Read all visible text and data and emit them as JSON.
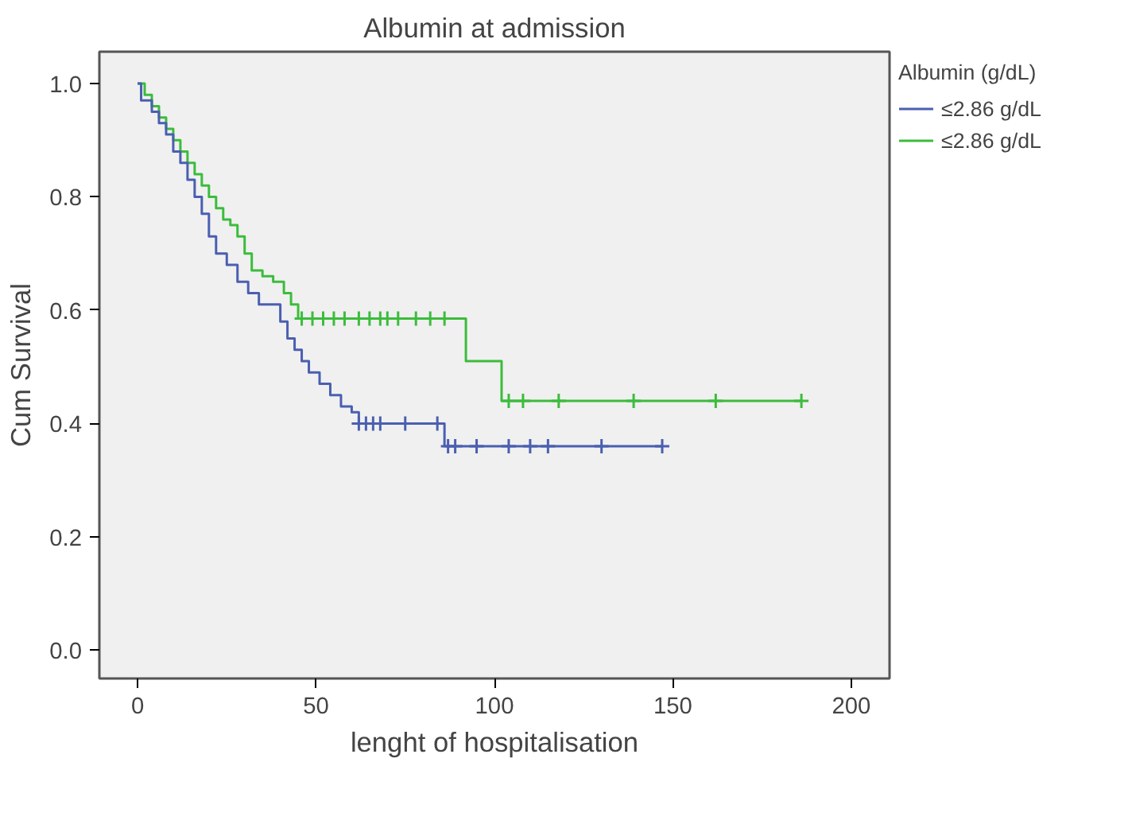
{
  "chart_data": {
    "type": "step",
    "title": "Albumin at admission",
    "xlabel": "lenght of hospitalisation",
    "ylabel": "Cum Survival",
    "legend_title": "Albumin (g/dL)",
    "legend": "top right",
    "grid": false,
    "marker": "none",
    "xlim": [
      -10.7,
      210.7
    ],
    "ylim": [
      -0.05,
      1.056
    ],
    "xticks": [
      0,
      50,
      100,
      150,
      200
    ],
    "yticks": [
      {
        "value": 0,
        "label": "0.0"
      },
      {
        "value": 0.2,
        "label": "0.2"
      },
      {
        "value": 0.4,
        "label": "0.4"
      },
      {
        "value": 0.6,
        "label": "0.6"
      },
      {
        "value": 0.8,
        "label": "0.8"
      },
      {
        "value": 1,
        "label": "1.0"
      }
    ],
    "series": [
      {
        "name": "≤2.86 g/dL",
        "color": "#4a5fb0",
        "x": [
          0,
          1,
          4,
          6,
          8,
          10,
          12,
          14,
          16,
          18,
          20,
          22,
          25,
          28,
          31,
          34,
          37,
          40,
          42,
          44,
          46,
          48,
          51,
          54,
          57,
          60,
          62,
          86,
          147
        ],
        "values": [
          1.0,
          0.97,
          0.95,
          0.93,
          0.91,
          0.88,
          0.86,
          0.83,
          0.8,
          0.77,
          0.73,
          0.7,
          0.68,
          0.65,
          0.63,
          0.61,
          0.61,
          0.58,
          0.55,
          0.53,
          0.51,
          0.49,
          0.47,
          0.45,
          0.43,
          0.42,
          0.4,
          0.36,
          0.36
        ]
      },
      {
        "name": "≤2.86 g/dL",
        "color": "#3cbc3c",
        "x": [
          0,
          2,
          4,
          6,
          8,
          10,
          12,
          14,
          16,
          18,
          20,
          22,
          24,
          26,
          28,
          30,
          32,
          35,
          38,
          41,
          43,
          45,
          92,
          102,
          186
        ],
        "values": [
          1.0,
          0.98,
          0.96,
          0.94,
          0.92,
          0.9,
          0.88,
          0.86,
          0.84,
          0.82,
          0.8,
          0.78,
          0.76,
          0.75,
          0.73,
          0.7,
          0.67,
          0.66,
          0.65,
          0.63,
          0.61,
          0.585,
          0.51,
          0.44,
          0.44
        ]
      },
      {
        "type": "scatter",
        "marker": "cross",
        "color": "#4a5fb0",
        "x": [
          62,
          64,
          66,
          68,
          75,
          84,
          87,
          89,
          95,
          104,
          110,
          115,
          130,
          147
        ],
        "values": [
          0.4,
          0.4,
          0.4,
          0.4,
          0.4,
          0.4,
          0.36,
          0.36,
          0.36,
          0.36,
          0.36,
          0.36,
          0.36,
          0.36
        ]
      },
      {
        "type": "scatter",
        "marker": "cross",
        "color": "#3cbc3c",
        "x": [
          46,
          49,
          52,
          55,
          58,
          62,
          65,
          68,
          70,
          73,
          78,
          82,
          86,
          104,
          108,
          118,
          139,
          162,
          186
        ],
        "values": [
          0.585,
          0.585,
          0.585,
          0.585,
          0.585,
          0.585,
          0.585,
          0.585,
          0.585,
          0.585,
          0.585,
          0.585,
          0.585,
          0.44,
          0.44,
          0.44,
          0.44,
          0.44,
          0.44
        ]
      }
    ]
  }
}
